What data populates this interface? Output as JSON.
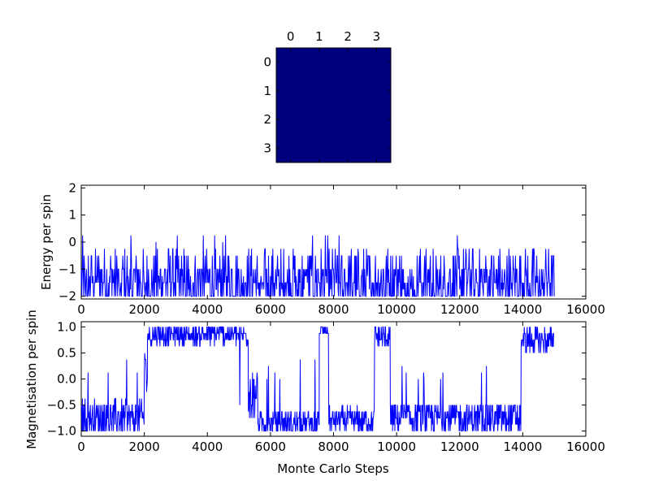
{
  "chart_data": [
    {
      "type": "heatmap",
      "title": "",
      "x_ticks": [
        "0",
        "1",
        "2",
        "3"
      ],
      "y_ticks": [
        "0",
        "1",
        "2",
        "3"
      ],
      "values": [
        [
          -1,
          -1,
          -1,
          -1
        ],
        [
          -1,
          -1,
          -1,
          -1
        ],
        [
          -1,
          -1,
          -1,
          -1
        ],
        [
          -1,
          -1,
          -1,
          -1
        ]
      ],
      "colormap": "jet",
      "cell_color": "#00007f",
      "xlim": [
        -0.5,
        3.5
      ],
      "ylim": [
        3.5,
        -0.5
      ]
    },
    {
      "type": "line",
      "xlabel": "",
      "ylabel": "Energy per spin",
      "xlim": [
        0,
        16000
      ],
      "ylim": [
        -2.1,
        2.1
      ],
      "x_ticks": [
        "0",
        "2000",
        "4000",
        "6000",
        "8000",
        "10000",
        "12000",
        "14000",
        "16000"
      ],
      "y_ticks": [
        "2",
        "1",
        "0",
        "−1",
        "−2"
      ],
      "y_tick_values": [
        2,
        1,
        0,
        -1,
        -2
      ],
      "x_tick_values": [
        0,
        2000,
        4000,
        6000,
        8000,
        10000,
        12000,
        14000,
        16000
      ],
      "line_color": "#0000ff",
      "series": [
        {
          "x": [
            0,
            15000
          ],
          "values": [
            -1.5,
            -2.0
          ],
          "note_values": "fluctuating trace between -2.0 and 0.25 over 0-15000 steps",
          "min": -2.0,
          "max": 0.25
        }
      ]
    },
    {
      "type": "line",
      "xlabel": "Monte Carlo Steps",
      "ylabel": "Magnetisation per spin",
      "xlim": [
        0,
        16000
      ],
      "ylim": [
        -1.1,
        1.1
      ],
      "x_ticks": [
        "0",
        "2000",
        "4000",
        "6000",
        "8000",
        "10000",
        "12000",
        "14000",
        "16000"
      ],
      "x_tick_values": [
        0,
        2000,
        4000,
        6000,
        8000,
        10000,
        12000,
        14000,
        16000
      ],
      "y_ticks": [
        "1.0",
        "0.5",
        "0.0",
        "−0.5",
        "−1.0"
      ],
      "y_tick_values": [
        1.0,
        0.5,
        0.0,
        -0.5,
        -1.0
      ],
      "line_color": "#0000ff",
      "series": [
        {
          "segments": [
            {
              "x0": 0,
              "x1": 2000,
              "level": -0.75,
              "spread": 0.35,
              "peak": 0.5
            },
            {
              "x0": 2000,
              "x1": 2100,
              "level": 0.2,
              "spread": 0.4
            },
            {
              "x0": 2100,
              "x1": 5300,
              "level": 0.85,
              "spread": 0.2,
              "dip": -0.5
            },
            {
              "x0": 5300,
              "x1": 5600,
              "level": -0.3,
              "spread": 0.5
            },
            {
              "x0": 5600,
              "x1": 7550,
              "level": -0.85,
              "spread": 0.25,
              "peak": 0.5
            },
            {
              "x0": 7550,
              "x1": 7850,
              "level": 0.9,
              "spread": 0.1
            },
            {
              "x0": 7850,
              "x1": 9300,
              "level": -0.8,
              "spread": 0.25
            },
            {
              "x0": 9300,
              "x1": 9800,
              "level": 0.8,
              "spread": 0.25
            },
            {
              "x0": 9800,
              "x1": 13950,
              "level": -0.75,
              "spread": 0.3,
              "peak": 0.25
            },
            {
              "x0": 13950,
              "x1": 15000,
              "level": 0.75,
              "spread": 0.25
            }
          ]
        }
      ]
    }
  ]
}
